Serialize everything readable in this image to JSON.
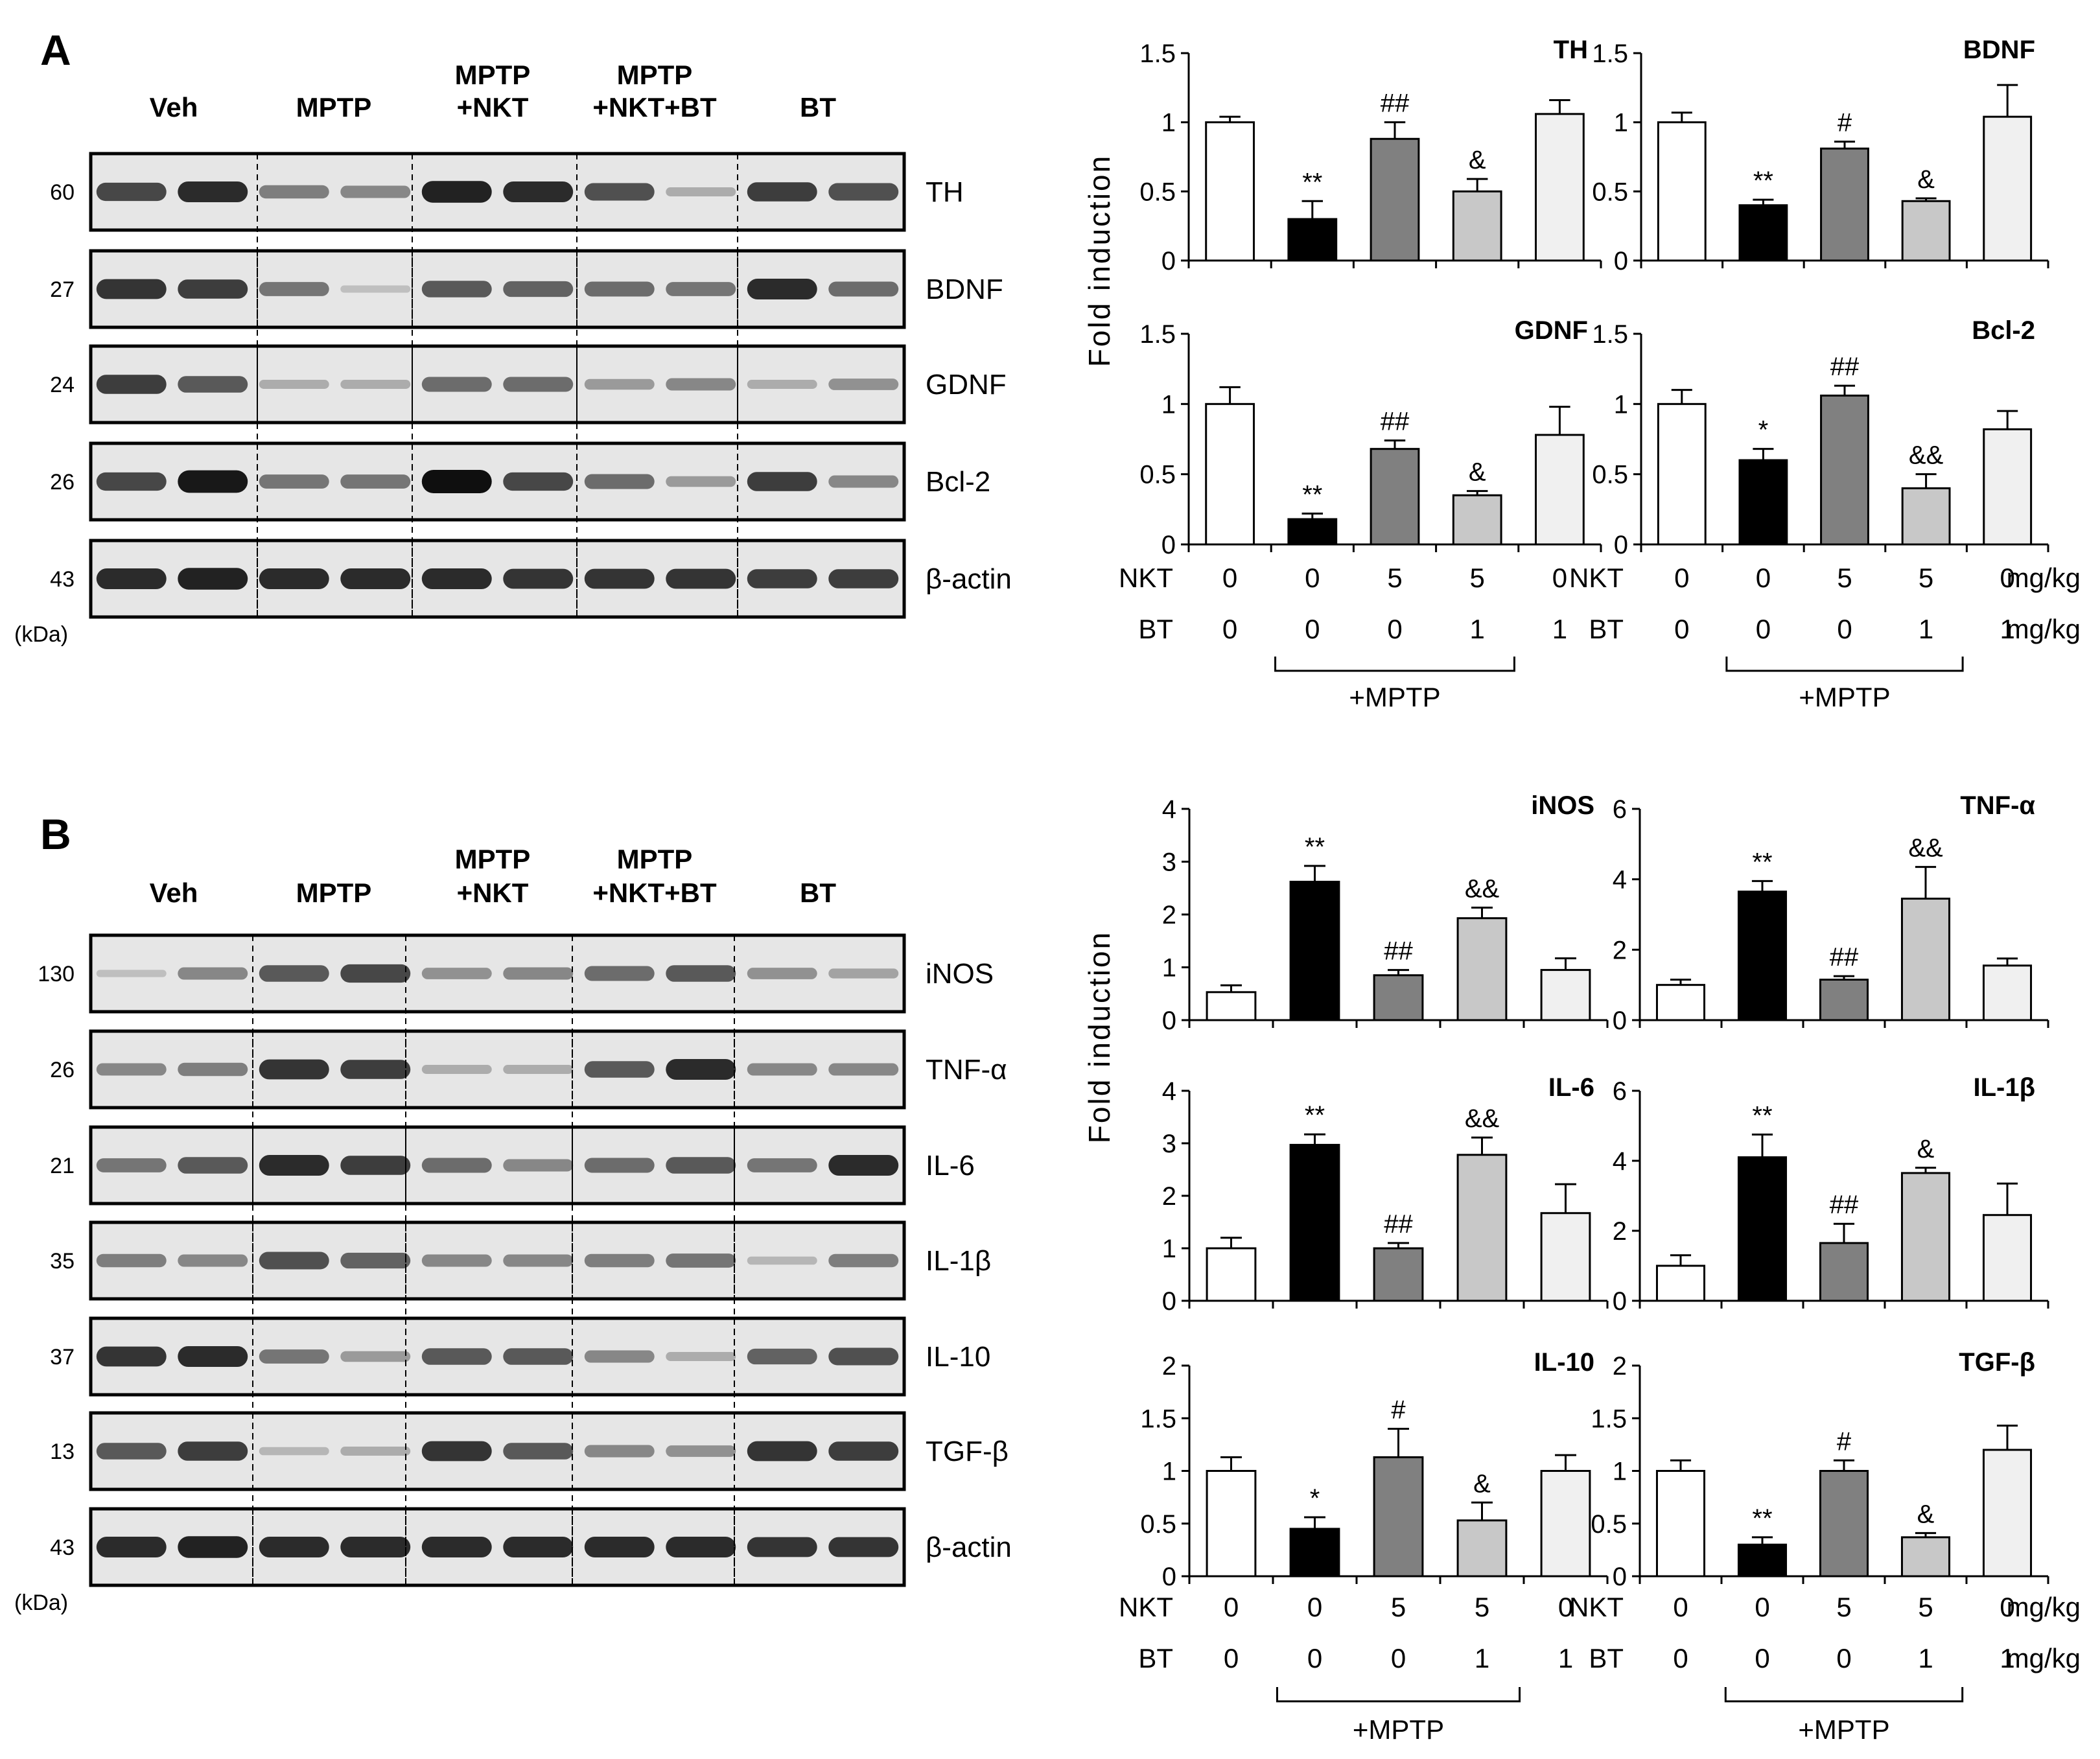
{
  "panels": [
    {
      "label": "A",
      "lanes": [
        "Veh",
        "MPTP",
        "MPTP\n+NKT",
        "MPTP\n+NKT+BT",
        "BT"
      ],
      "kda_unit": "(kDa)",
      "blots": [
        {
          "protein": "TH",
          "kda": "60",
          "bands": [
            0.7,
            0.85,
            0.4,
            0.35,
            0.9,
            0.85,
            0.65,
            0.15,
            0.75,
            0.65
          ]
        },
        {
          "protein": "BDNF",
          "kda": "27",
          "bands": [
            0.8,
            0.75,
            0.45,
            0.05,
            0.6,
            0.55,
            0.5,
            0.45,
            0.85,
            0.5
          ]
        },
        {
          "protein": "GDNF",
          "kda": "24",
          "bands": [
            0.75,
            0.6,
            0.15,
            0.15,
            0.5,
            0.5,
            0.25,
            0.35,
            0.15,
            0.3
          ]
        },
        {
          "protein": "Bcl-2",
          "kda": "26",
          "bands": [
            0.7,
            0.95,
            0.45,
            0.45,
            1.0,
            0.7,
            0.5,
            0.25,
            0.75,
            0.35
          ]
        },
        {
          "protein": "β-actin",
          "kda": "43",
          "bands": [
            0.85,
            0.9,
            0.85,
            0.85,
            0.85,
            0.8,
            0.8,
            0.8,
            0.75,
            0.75
          ]
        }
      ]
    },
    {
      "label": "B",
      "lanes": [
        "Veh",
        "MPTP",
        "MPTP\n+NKT",
        "MPTP\n+NKT+BT",
        "BT"
      ],
      "kda_unit": "(kDa)",
      "blots": [
        {
          "protein": "iNOS",
          "kda": "130",
          "bands": [
            0.05,
            0.35,
            0.6,
            0.7,
            0.3,
            0.35,
            0.5,
            0.6,
            0.3,
            0.2
          ]
        },
        {
          "protein": "TNF-α",
          "kda": "26",
          "bands": [
            0.35,
            0.4,
            0.8,
            0.75,
            0.15,
            0.15,
            0.6,
            0.85,
            0.35,
            0.35
          ]
        },
        {
          "protein": "IL-6",
          "kda": "21",
          "bands": [
            0.45,
            0.6,
            0.85,
            0.75,
            0.5,
            0.35,
            0.5,
            0.6,
            0.45,
            0.85
          ]
        },
        {
          "protein": "IL-1β",
          "kda": "35",
          "bands": [
            0.4,
            0.35,
            0.65,
            0.55,
            0.35,
            0.35,
            0.4,
            0.45,
            0.1,
            0.4
          ]
        },
        {
          "protein": "IL-10",
          "kda": "37",
          "bands": [
            0.8,
            0.85,
            0.45,
            0.25,
            0.6,
            0.6,
            0.35,
            0.15,
            0.55,
            0.65
          ]
        },
        {
          "protein": "TGF-β",
          "kda": "13",
          "bands": [
            0.6,
            0.75,
            0.1,
            0.15,
            0.8,
            0.6,
            0.35,
            0.3,
            0.8,
            0.75
          ]
        },
        {
          "protein": "β-actin",
          "kda": "43",
          "bands": [
            0.85,
            0.9,
            0.85,
            0.85,
            0.85,
            0.85,
            0.85,
            0.85,
            0.8,
            0.8
          ]
        }
      ]
    }
  ],
  "ylabel": "Fold induction",
  "conditions": {
    "rows": [
      {
        "label": "NKT",
        "values": [
          "0",
          "0",
          "5",
          "5",
          "0"
        ],
        "unit": "mg/kg"
      },
      {
        "label": "BT",
        "values": [
          "0",
          "0",
          "0",
          "1",
          "1"
        ],
        "unit": "mg/kg"
      }
    ],
    "bracket_label": "+MPTP"
  },
  "colors": {
    "veh": "#ffffff",
    "mptp": "#000000",
    "nkt": "#808080",
    "nktbt": "#c8c8c8",
    "bt": "#f0f0f0",
    "blot_bg": "#e6e6e6"
  },
  "chart_data": [
    {
      "type": "bar",
      "title": "TH",
      "ylim": [
        0,
        1.5
      ],
      "yticks": [
        "0",
        "0.5",
        "1",
        "1.5"
      ],
      "values": [
        1.0,
        0.3,
        0.88,
        0.5,
        1.06
      ],
      "errors": [
        0.04,
        0.13,
        0.12,
        0.09,
        0.1
      ],
      "sig": [
        "",
        "**",
        "##",
        "&",
        ""
      ]
    },
    {
      "type": "bar",
      "title": "BDNF",
      "ylim": [
        0,
        1.5
      ],
      "yticks": [
        "0",
        "0.5",
        "1",
        "1.5"
      ],
      "values": [
        1.0,
        0.4,
        0.81,
        0.43,
        1.04
      ],
      "errors": [
        0.07,
        0.04,
        0.05,
        0.02,
        0.23
      ],
      "sig": [
        "",
        "**",
        "#",
        "&",
        ""
      ]
    },
    {
      "type": "bar",
      "title": "GDNF",
      "ylim": [
        0,
        1.5
      ],
      "yticks": [
        "0",
        "0.5",
        "1",
        "1.5"
      ],
      "values": [
        1.0,
        0.18,
        0.68,
        0.35,
        0.78
      ],
      "errors": [
        0.12,
        0.04,
        0.06,
        0.03,
        0.2
      ],
      "sig": [
        "",
        "**",
        "##",
        "&",
        ""
      ]
    },
    {
      "type": "bar",
      "title": "Bcl-2",
      "ylim": [
        0,
        1.5
      ],
      "yticks": [
        "0",
        "0.5",
        "1",
        "1.5"
      ],
      "values": [
        1.0,
        0.6,
        1.06,
        0.4,
        0.82
      ],
      "errors": [
        0.1,
        0.08,
        0.07,
        0.1,
        0.13
      ],
      "sig": [
        "",
        "*",
        "##",
        "&&",
        ""
      ]
    },
    {
      "type": "bar",
      "title": "iNOS",
      "ylim": [
        0,
        4
      ],
      "yticks": [
        "0",
        "1",
        "2",
        "3",
        "4"
      ],
      "values": [
        0.53,
        2.62,
        0.85,
        1.93,
        0.95
      ],
      "errors": [
        0.13,
        0.3,
        0.1,
        0.2,
        0.22
      ],
      "sig": [
        "",
        "**",
        "##",
        "&&",
        ""
      ]
    },
    {
      "type": "bar",
      "title": "TNF-α",
      "ylim": [
        0,
        6
      ],
      "yticks": [
        "0",
        "2",
        "4",
        "6"
      ],
      "values": [
        1.0,
        3.65,
        1.15,
        3.45,
        1.55
      ],
      "errors": [
        0.15,
        0.3,
        0.1,
        0.9,
        0.2
      ],
      "sig": [
        "",
        "**",
        "##",
        "&&",
        ""
      ]
    },
    {
      "type": "bar",
      "title": "IL-6",
      "ylim": [
        0,
        4
      ],
      "yticks": [
        "0",
        "1",
        "2",
        "3",
        "4"
      ],
      "values": [
        1.0,
        2.97,
        1.0,
        2.78,
        1.67
      ],
      "errors": [
        0.2,
        0.2,
        0.1,
        0.33,
        0.55
      ],
      "sig": [
        "",
        "**",
        "##",
        "&&",
        ""
      ]
    },
    {
      "type": "bar",
      "title": "IL-1β",
      "ylim": [
        0,
        6
      ],
      "yticks": [
        "0",
        "2",
        "4",
        "6"
      ],
      "values": [
        1.0,
        4.1,
        1.65,
        3.65,
        2.45
      ],
      "errors": [
        0.3,
        0.65,
        0.55,
        0.15,
        0.9
      ],
      "sig": [
        "",
        "**",
        "##",
        "&",
        ""
      ]
    },
    {
      "type": "bar",
      "title": "IL-10",
      "ylim": [
        0,
        2
      ],
      "yticks": [
        "0",
        "0.5",
        "1",
        "1.5",
        "2"
      ],
      "values": [
        1.0,
        0.45,
        1.13,
        0.53,
        1.0
      ],
      "errors": [
        0.13,
        0.11,
        0.27,
        0.17,
        0.15
      ],
      "sig": [
        "",
        "*",
        "#",
        "&",
        ""
      ]
    },
    {
      "type": "bar",
      "title": "TGF-β",
      "ylim": [
        0,
        2
      ],
      "yticks": [
        "0",
        "0.5",
        "1",
        "1.5",
        "2"
      ],
      "values": [
        1.0,
        0.3,
        1.0,
        0.37,
        1.2
      ],
      "errors": [
        0.1,
        0.07,
        0.1,
        0.04,
        0.23
      ],
      "sig": [
        "",
        "**",
        "#",
        "&",
        ""
      ]
    }
  ]
}
